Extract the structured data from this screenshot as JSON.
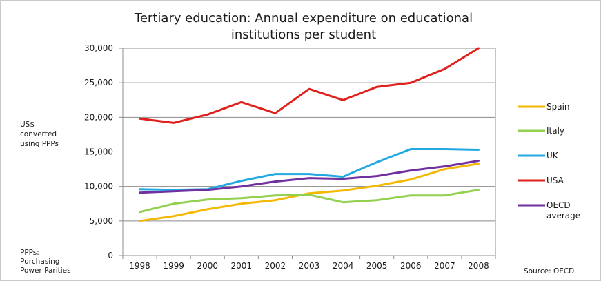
{
  "chart_data": {
    "type": "line",
    "title_lines": [
      "Tertiary education: Annual expenditure on educational",
      "institutions per student"
    ],
    "ylabel_lines": [
      "US$",
      "converted",
      "using PPPs"
    ],
    "note_lines": [
      "PPPs:",
      "Purchasing",
      "Power Parities"
    ],
    "source": "Source: OECD",
    "x": [
      "1998",
      "1999",
      "2000",
      "2001",
      "2002",
      "2003",
      "2004",
      "2005",
      "2006",
      "2007",
      "2008"
    ],
    "ylim": [
      0,
      30000
    ],
    "yticks": [
      0,
      5000,
      10000,
      15000,
      20000,
      25000,
      30000
    ],
    "ytick_labels": [
      "0",
      "5,000",
      "10,000",
      "15,000",
      "20,000",
      "25,000",
      "30,000"
    ],
    "grid": true,
    "legend_position": "right",
    "series": [
      {
        "name": "Spain",
        "legend_lines": [
          "Spain"
        ],
        "color": "#f5b800",
        "values": [
          5000,
          5700,
          6700,
          7500,
          8000,
          9000,
          9400,
          10100,
          11000,
          12500,
          13300
        ]
      },
      {
        "name": "Italy",
        "legend_lines": [
          "Italy"
        ],
        "color": "#92d050",
        "values": [
          6300,
          7500,
          8100,
          8300,
          8700,
          8800,
          7700,
          8000,
          8700,
          8700,
          9500
        ]
      },
      {
        "name": "UK",
        "legend_lines": [
          "UK"
        ],
        "color": "#23a9e1",
        "values": [
          9600,
          9500,
          9600,
          10800,
          11800,
          11800,
          11400,
          13500,
          15400,
          15400,
          15300
        ]
      },
      {
        "name": "USA",
        "legend_lines": [
          "USA"
        ],
        "color": "#e0201b",
        "values": [
          19800,
          19200,
          20400,
          22200,
          20600,
          24100,
          22500,
          24400,
          25000,
          27000,
          30000
        ]
      },
      {
        "name": "OECD average",
        "legend_lines": [
          "OECD",
          "average"
        ],
        "color": "#7030a0",
        "values": [
          9100,
          9300,
          9500,
          10000,
          10700,
          11200,
          11100,
          11500,
          12300,
          12900,
          13700
        ]
      }
    ]
  }
}
